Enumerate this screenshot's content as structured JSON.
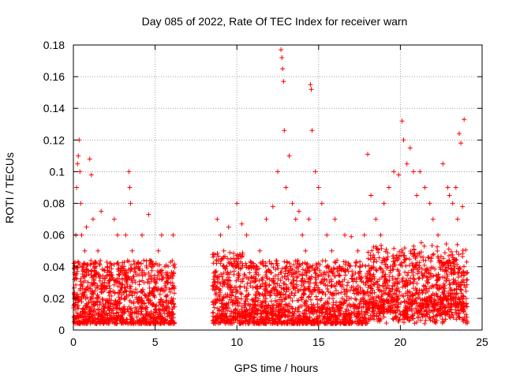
{
  "chart_data": {
    "type": "scatter",
    "title": "Day 085 of 2022, Rate Of TEC Index for receiver warn",
    "xlabel": "GPS time / hours",
    "ylabel": "ROTI / TECUs",
    "xlim": [
      0,
      25
    ],
    "ylim": [
      0,
      0.18
    ],
    "xticks": [
      0,
      5,
      10,
      15,
      20,
      25
    ],
    "yticks": [
      0,
      0.02,
      0.04,
      0.06,
      0.08,
      0.1,
      0.12,
      0.14,
      0.16,
      0.18
    ],
    "xtick_labels": [
      "0",
      "5",
      "10",
      "15",
      "20",
      "25"
    ],
    "ytick_labels": [
      "0",
      "0.02",
      "0.04",
      "0.06",
      "0.08",
      "0.1",
      "0.12",
      "0.14",
      "0.16",
      "0.18"
    ],
    "grid": true,
    "marker": "+",
    "color": "#ff0000",
    "data_gap": [
      6.2,
      8.5
    ],
    "series": [
      {
        "x": [
          0.05,
          0.1,
          0.15,
          0.2,
          0.25,
          0.3,
          0.35,
          0.4,
          0.45,
          0.5,
          0.55,
          0.6,
          0.7,
          0.8,
          0.9,
          1.0,
          1.1,
          1.2,
          1.3,
          1.5,
          1.7,
          1.9,
          2.1,
          2.3,
          2.5,
          2.7,
          2.8,
          3.0,
          3.2,
          3.4,
          3.45,
          3.5,
          3.6,
          3.8,
          4.0,
          4.2,
          4.4,
          4.6,
          4.8,
          5.0,
          5.2,
          5.4,
          5.6,
          5.8,
          6.0,
          6.1,
          8.6,
          8.8,
          9.0,
          9.2,
          9.5,
          9.8,
          10.0,
          10.3,
          10.6,
          11.0,
          11.4,
          11.8,
          12.2,
          12.5,
          12.7,
          12.75,
          12.8,
          12.85,
          12.9,
          13.0,
          13.2,
          13.4,
          13.6,
          13.8,
          14.0,
          14.2,
          14.4,
          14.5,
          14.55,
          14.6,
          14.8,
          15.0,
          15.2,
          15.5,
          15.8,
          16.0,
          16.3,
          16.6,
          17.0,
          17.4,
          17.8,
          18.0,
          18.2,
          18.5,
          18.8,
          19.0,
          19.3,
          19.6,
          19.9,
          20.1,
          20.2,
          20.4,
          20.6,
          20.8,
          21.0,
          21.2,
          21.5,
          21.8,
          22.0,
          22.3,
          22.6,
          22.9,
          23.0,
          23.2,
          23.4,
          23.5,
          23.6,
          23.7,
          23.8,
          23.9
        ],
        "y": [
          0.02,
          0.035,
          0.06,
          0.09,
          0.105,
          0.11,
          0.12,
          0.1,
          0.08,
          0.06,
          0.04,
          0.03,
          0.05,
          0.065,
          0.03,
          0.108,
          0.098,
          0.07,
          0.04,
          0.05,
          0.075,
          0.03,
          0.04,
          0.035,
          0.07,
          0.06,
          0.03,
          0.04,
          0.06,
          0.1,
          0.09,
          0.08,
          0.05,
          0.03,
          0.04,
          0.06,
          0.035,
          0.073,
          0.04,
          0.03,
          0.05,
          0.06,
          0.04,
          0.03,
          0.02,
          0.06,
          0.03,
          0.07,
          0.06,
          0.05,
          0.065,
          0.04,
          0.08,
          0.067,
          0.06,
          0.04,
          0.05,
          0.07,
          0.078,
          0.1,
          0.177,
          0.172,
          0.165,
          0.157,
          0.126,
          0.09,
          0.11,
          0.08,
          0.07,
          0.075,
          0.06,
          0.05,
          0.07,
          0.155,
          0.152,
          0.126,
          0.1,
          0.09,
          0.08,
          0.06,
          0.05,
          0.07,
          0.04,
          0.06,
          0.059,
          0.05,
          0.06,
          0.111,
          0.085,
          0.07,
          0.06,
          0.08,
          0.09,
          0.1,
          0.098,
          0.132,
          0.12,
          0.105,
          0.115,
          0.1,
          0.085,
          0.1,
          0.09,
          0.08,
          0.07,
          0.06,
          0.105,
          0.09,
          0.085,
          0.08,
          0.09,
          0.07,
          0.124,
          0.118,
          0.078,
          0.133
        ]
      }
    ]
  }
}
